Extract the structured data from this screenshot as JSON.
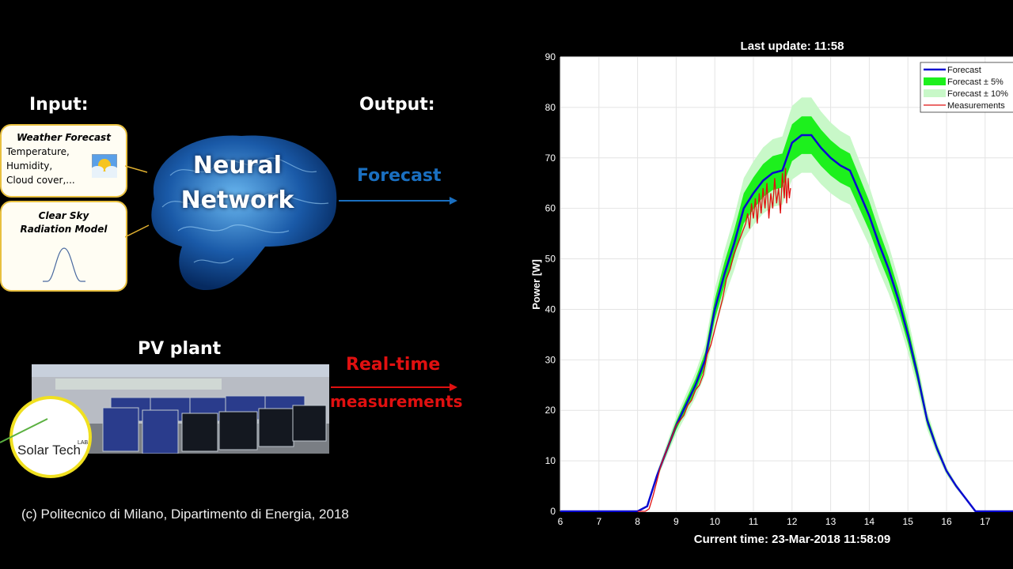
{
  "left": {
    "input_label": "Input:",
    "output_label": "Output:",
    "weather_box": {
      "title": "Weather Forecast",
      "lines": [
        "Temperature,",
        "Humidity,",
        "Cloud cover,..."
      ],
      "icon": "sun-cloud-icon"
    },
    "clearsky_box": {
      "title_line1": "Clear Sky",
      "title_line2": "Radiation Model",
      "icon": "bell-curve-icon"
    },
    "brain": {
      "line1": "Neural",
      "line2": "Network"
    },
    "forecast_label": "Forecast",
    "pv_label": "PV plant",
    "realtime_line1": "Real-time",
    "realtime_line2": "measurements",
    "logo_text": "Solar Tech",
    "logo_sup": "LAB",
    "copyright": "(c) Politecnico di Milano, Dipartimento di Energia, 2018",
    "colors": {
      "forecast_arrow": "#1a6fc0",
      "realtime": "#e01010",
      "box_border": "#e8c040"
    }
  },
  "chart_data": {
    "type": "line",
    "title": "Last update: 11:58",
    "xlabel": "Current time: 23-Mar-2018 11:58:09",
    "ylabel": "Power [W]",
    "xlim": [
      6,
      18
    ],
    "ylim": [
      0,
      90
    ],
    "xticks": [
      6,
      7,
      8,
      9,
      10,
      11,
      12,
      13,
      14,
      15,
      16,
      17
    ],
    "yticks": [
      0,
      10,
      20,
      30,
      40,
      50,
      60,
      70,
      80,
      90
    ],
    "grid": true,
    "legend_position": "top-right",
    "legend": [
      "Forecast",
      "Forecast ± 5%",
      "Forecast ± 10%",
      "Measurements"
    ],
    "colors": {
      "forecast": "#0a0ad0",
      "band5": "#1df01d",
      "band10": "#c8f8c8",
      "measurements": "#e01010"
    },
    "forecast": {
      "x": [
        6,
        8,
        8.25,
        8.5,
        8.75,
        9,
        9.25,
        9.5,
        9.75,
        10,
        10.25,
        10.5,
        10.75,
        11,
        11.25,
        11.5,
        11.75,
        12,
        12.25,
        12.5,
        12.75,
        13,
        13.25,
        13.5,
        13.75,
        14,
        14.25,
        14.5,
        14.75,
        15,
        15.25,
        15.5,
        15.75,
        16,
        16.25,
        16.5,
        16.75,
        18
      ],
      "y": [
        0,
        0,
        1,
        7,
        12,
        17,
        21,
        25,
        30,
        40,
        47,
        53,
        60,
        63,
        65.5,
        67,
        67.5,
        73,
        74.5,
        74.5,
        72,
        70,
        68.5,
        67.5,
        63,
        58.5,
        53,
        48,
        42,
        35,
        27,
        18,
        12.5,
        8,
        5,
        2.5,
        0,
        0
      ]
    },
    "measurements": {
      "x": [
        8.0,
        8.2,
        8.3,
        8.4,
        8.5,
        8.6,
        8.7,
        8.8,
        8.9,
        9.0,
        9.1,
        9.2,
        9.3,
        9.4,
        9.5,
        9.6,
        9.7,
        9.8,
        9.9,
        10.0,
        10.1,
        10.2,
        10.3,
        10.4,
        10.5,
        10.6,
        10.7,
        10.8,
        10.85,
        10.9,
        10.95,
        11.0,
        11.05,
        11.1,
        11.15,
        11.2,
        11.25,
        11.3,
        11.35,
        11.4,
        11.45,
        11.5,
        11.55,
        11.6,
        11.65,
        11.7,
        11.75,
        11.8,
        11.83,
        11.86,
        11.9,
        11.93,
        11.96
      ],
      "y": [
        0,
        0,
        0.5,
        3,
        6,
        9,
        11,
        13,
        15,
        17,
        18,
        19,
        21,
        22,
        24,
        25,
        27,
        31,
        33,
        36,
        39,
        42,
        46,
        48,
        51,
        53,
        55,
        57,
        59,
        56,
        61,
        58,
        62,
        57,
        63,
        59,
        64,
        60,
        65,
        58,
        63,
        60,
        66,
        61,
        64,
        59,
        67,
        62,
        68,
        61,
        66,
        62,
        64
      ]
    }
  }
}
